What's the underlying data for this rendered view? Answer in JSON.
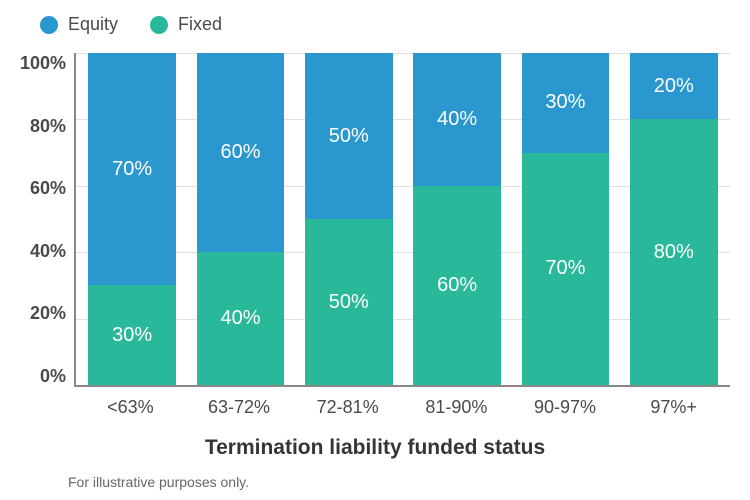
{
  "chart": {
    "type": "stacked-bar-100",
    "background_color": "#ffffff",
    "grid_color": "#e0e0e0",
    "axis_color": "#888888",
    "text_color": "#4a4a4a",
    "bar_label_color": "#ffffff",
    "bar_label_fontsize": 20,
    "tick_fontsize": 18,
    "bar_width_pct": 13.5,
    "legend": {
      "position": "top-left",
      "items": [
        {
          "key": "equity",
          "label": "Equity",
          "color": "#2a98cf"
        },
        {
          "key": "fixed",
          "label": "Fixed",
          "color": "#29b99a"
        }
      ]
    },
    "yaxis": {
      "min": 0,
      "max": 100,
      "tick_step": 20,
      "ticks": [
        "100%",
        "80%",
        "60%",
        "40%",
        "20%",
        "0%"
      ]
    },
    "xaxis": {
      "title": "Termination liability funded status",
      "categories": [
        "<63%",
        "63-72%",
        "72-81%",
        "81-90%",
        "90-97%",
        "97%+"
      ]
    },
    "series_order": [
      "fixed",
      "equity"
    ],
    "data": [
      {
        "fixed": 30,
        "equity": 70
      },
      {
        "fixed": 40,
        "equity": 60
      },
      {
        "fixed": 50,
        "equity": 50
      },
      {
        "fixed": 60,
        "equity": 40
      },
      {
        "fixed": 70,
        "equity": 30
      },
      {
        "fixed": 80,
        "equity": 20
      }
    ],
    "footnote": "For illustrative purposes only."
  }
}
